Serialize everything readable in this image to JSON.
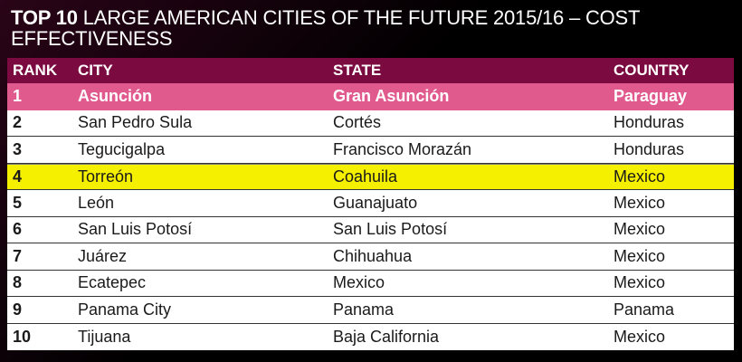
{
  "title": {
    "strong": "TOP 10",
    "rest": " LARGE AMERICAN CITIES OF THE FUTURE 2015/16 – COST EFFECTIVENESS"
  },
  "columns": {
    "rank": "RANK",
    "city": "CITY",
    "state": "STATE",
    "country": "COUNTRY"
  },
  "rows": [
    {
      "rank": "1",
      "city": "Asunción",
      "state": "Gran Asunción",
      "country": "Paraguay"
    },
    {
      "rank": "2",
      "city": "San Pedro Sula",
      "state": "Cortés",
      "country": "Honduras"
    },
    {
      "rank": "3",
      "city": "Tegucigalpa",
      "state": "Francisco Morazán",
      "country": "Honduras"
    },
    {
      "rank": "4",
      "city": "Torreón",
      "state": "Coahuila",
      "country": "Mexico"
    },
    {
      "rank": "5",
      "city": "León",
      "state": "Guanajuato",
      "country": "Mexico"
    },
    {
      "rank": "6",
      "city": "San Luis Potosí",
      "state": "San Luis Potosí",
      "country": "Mexico"
    },
    {
      "rank": "7",
      "city": "Juárez",
      "state": "Chihuahua",
      "country": "Mexico"
    },
    {
      "rank": "8",
      "city": "Ecatepec",
      "state": "Mexico",
      "country": "Mexico"
    },
    {
      "rank": "9",
      "city": "Panama City",
      "state": "Panama",
      "country": "Panama"
    },
    {
      "rank": "10",
      "city": "Tijuana",
      "state": "Baja California",
      "country": "Mexico"
    }
  ],
  "colors": {
    "header_bg": "#7a0a3f",
    "top_row_bg": "#e05a8e",
    "highlight_row_bg": "#f5ef00"
  }
}
